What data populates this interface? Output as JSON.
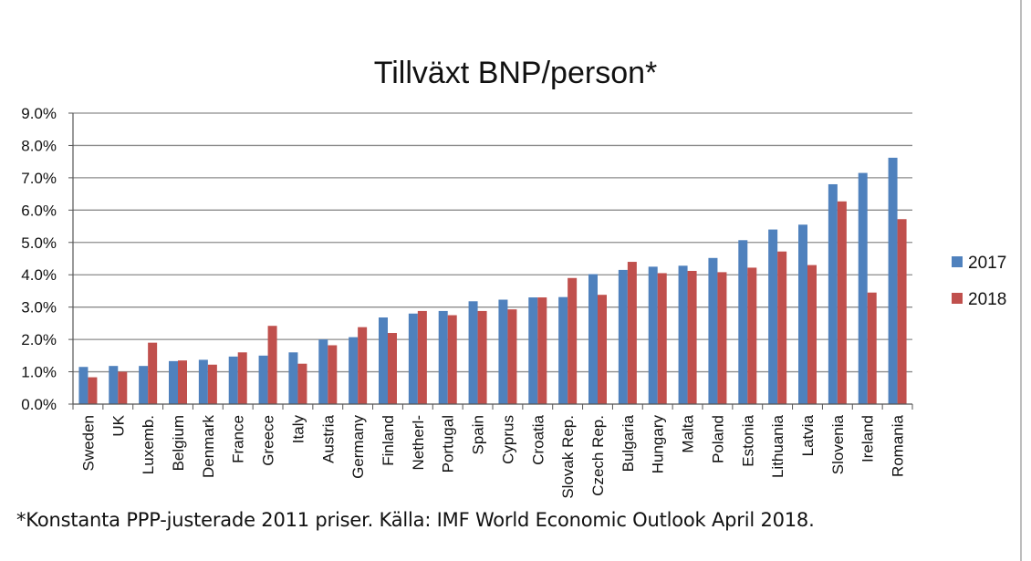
{
  "chart_data": {
    "type": "bar",
    "title": "Tillväxt BNP/person*",
    "categories": [
      "Sweden",
      "UK",
      "Luxemb.",
      "Belgium",
      "Denmark",
      "France",
      "Greece",
      "Italy",
      "Austria",
      "Germany",
      "Finland",
      "Netherl-",
      "Portugal",
      "Spain",
      "Cyprus",
      "Croatia",
      "Slovak Rep.",
      "Czech Rep.",
      "Bulgaria",
      "Hungary",
      "Malta",
      "Poland",
      "Estonia",
      "Lithuania",
      "Latvia",
      "Slovenia",
      "Ireland",
      "Romania"
    ],
    "series": [
      {
        "name": "2017",
        "color": "#4f81bd",
        "values": [
          1.15,
          1.18,
          1.18,
          1.33,
          1.37,
          1.47,
          1.5,
          1.6,
          2.0,
          2.07,
          2.68,
          2.8,
          2.88,
          3.18,
          3.23,
          3.3,
          3.31,
          4.02,
          4.15,
          4.25,
          4.28,
          4.52,
          5.07,
          5.4,
          5.55,
          6.8,
          7.15,
          7.62
        ]
      },
      {
        "name": "2018",
        "color": "#c0504d",
        "values": [
          0.83,
          1.0,
          1.9,
          1.35,
          1.22,
          1.6,
          2.42,
          1.25,
          1.82,
          2.38,
          2.2,
          2.88,
          2.75,
          2.88,
          2.93,
          3.3,
          3.9,
          3.38,
          4.4,
          4.05,
          4.12,
          4.08,
          4.22,
          4.72,
          4.3,
          6.27,
          3.45,
          5.72
        ]
      }
    ],
    "ylim": [
      0,
      9
    ],
    "yticks": [
      "0.0%",
      "1.0%",
      "2.0%",
      "3.0%",
      "4.0%",
      "5.0%",
      "6.0%",
      "7.0%",
      "8.0%",
      "9.0%"
    ],
    "grid": true,
    "legend": "right"
  },
  "footnote": "*Konstanta PPP-justerade 2011 priser. Källa: IMF World Economic Outlook April 2018."
}
